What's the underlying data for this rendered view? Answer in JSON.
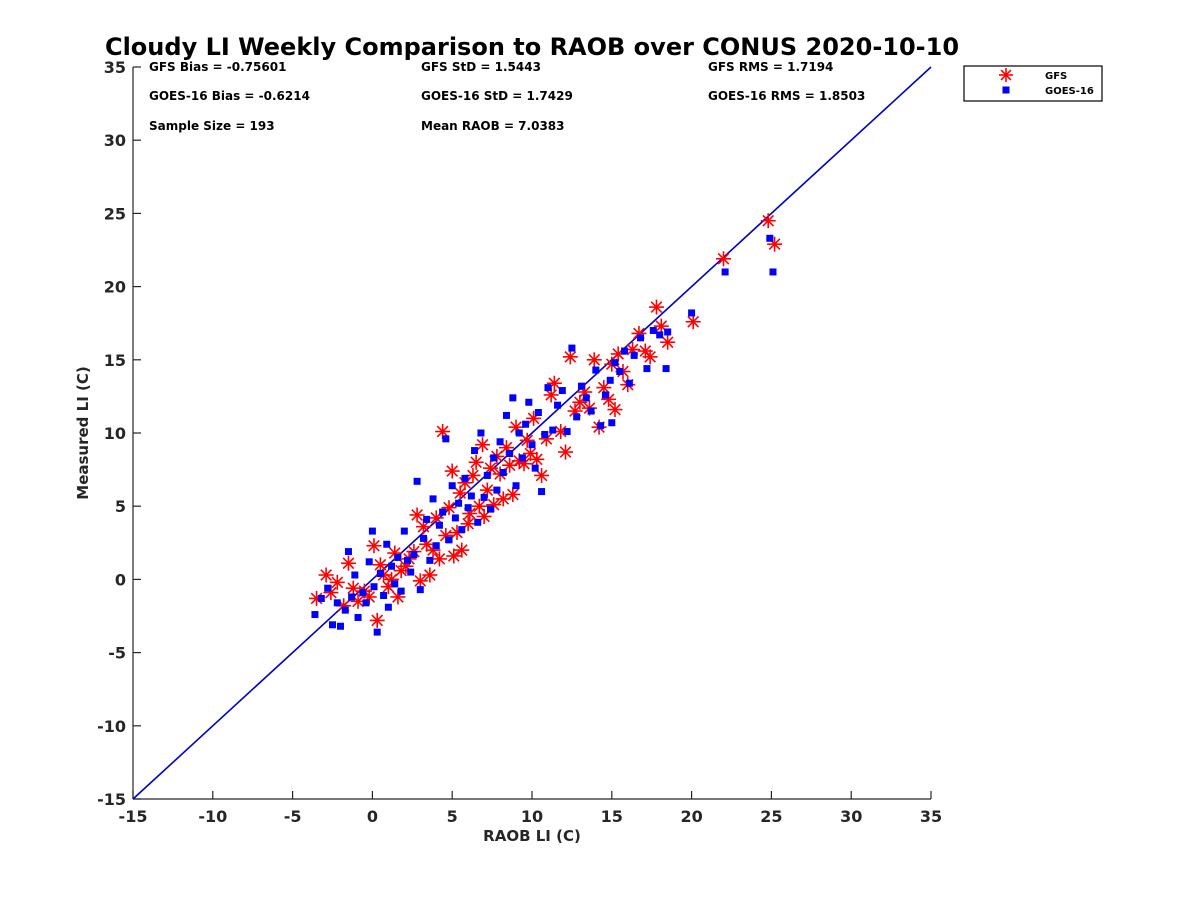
{
  "chart_data": {
    "type": "scatter",
    "title": "Cloudy LI Weekly Comparison to RAOB over CONUS 2020-10-10",
    "xlabel": "RAOB LI (C)",
    "ylabel": "Measured LI (C)",
    "xlim": [
      -15,
      35
    ],
    "ylim": [
      -15,
      35
    ],
    "xticks": [
      -15,
      -10,
      -5,
      0,
      5,
      10,
      15,
      20,
      25,
      30,
      35
    ],
    "yticks": [
      -15,
      -10,
      -5,
      0,
      5,
      10,
      15,
      20,
      25,
      30,
      35
    ],
    "grid": false,
    "legend_position": "outside top-right",
    "reference_line": {
      "x": [
        -15,
        35
      ],
      "y": [
        -15,
        35
      ],
      "color": "#0000cc"
    },
    "stats": {
      "gfs_bias": "GFS Bias = -0.75601",
      "gfs_std": "GFS StD = 1.5443",
      "gfs_rms": "GFS RMS = 1.7194",
      "goes_bias": "GOES-16 Bias = -0.6214",
      "goes_std": "GOES-16 StD = 1.7429",
      "goes_rms": "GOES-16 RMS = 1.8503",
      "sample_size": "Sample Size = 193",
      "mean_raob": "Mean RAOB = 7.0383"
    },
    "series": [
      {
        "name": "GFS",
        "marker": "asterisk",
        "color": "#ff0000",
        "points": [
          [
            -3.5,
            -1.3
          ],
          [
            -2.9,
            0.3
          ],
          [
            -2.6,
            -0.9
          ],
          [
            -2.2,
            -0.2
          ],
          [
            -1.8,
            -1.8
          ],
          [
            -1.5,
            1.1
          ],
          [
            -1.2,
            -0.6
          ],
          [
            -0.9,
            -1.5
          ],
          [
            -0.5,
            -0.8
          ],
          [
            -0.2,
            -1.2
          ],
          [
            0.1,
            2.3
          ],
          [
            0.3,
            -2.8
          ],
          [
            0.5,
            1.0
          ],
          [
            0.7,
            0.3
          ],
          [
            1.0,
            -0.5
          ],
          [
            1.2,
            0.0
          ],
          [
            1.4,
            1.8
          ],
          [
            1.6,
            -1.2
          ],
          [
            1.8,
            0.6
          ],
          [
            2.1,
            0.9
          ],
          [
            2.3,
            1.4
          ],
          [
            2.6,
            1.9
          ],
          [
            2.8,
            4.4
          ],
          [
            3.0,
            -0.1
          ],
          [
            3.2,
            3.6
          ],
          [
            3.4,
            2.4
          ],
          [
            3.6,
            0.3
          ],
          [
            3.8,
            2.0
          ],
          [
            4.0,
            4.2
          ],
          [
            4.2,
            1.4
          ],
          [
            4.4,
            10.1
          ],
          [
            4.6,
            3.0
          ],
          [
            4.8,
            4.9
          ],
          [
            5.0,
            7.4
          ],
          [
            5.1,
            1.6
          ],
          [
            5.3,
            3.2
          ],
          [
            5.5,
            5.9
          ],
          [
            5.6,
            2.0
          ],
          [
            5.8,
            6.6
          ],
          [
            6.0,
            3.8
          ],
          [
            6.1,
            4.5
          ],
          [
            6.3,
            7.1
          ],
          [
            6.5,
            8.0
          ],
          [
            6.7,
            5.0
          ],
          [
            6.9,
            9.2
          ],
          [
            7.0,
            4.3
          ],
          [
            7.2,
            6.1
          ],
          [
            7.4,
            7.6
          ],
          [
            7.6,
            5.1
          ],
          [
            7.8,
            8.4
          ],
          [
            8.0,
            7.2
          ],
          [
            8.2,
            5.5
          ],
          [
            8.4,
            9.0
          ],
          [
            8.6,
            7.8
          ],
          [
            8.8,
            5.8
          ],
          [
            9.0,
            10.4
          ],
          [
            9.2,
            8.1
          ],
          [
            9.5,
            7.9
          ],
          [
            9.7,
            9.5
          ],
          [
            9.9,
            8.6
          ],
          [
            10.1,
            11.0
          ],
          [
            10.3,
            8.2
          ],
          [
            10.6,
            7.1
          ],
          [
            10.9,
            9.6
          ],
          [
            11.2,
            12.6
          ],
          [
            11.4,
            13.4
          ],
          [
            11.8,
            10.1
          ],
          [
            12.1,
            8.7
          ],
          [
            12.4,
            15.2
          ],
          [
            12.7,
            11.5
          ],
          [
            13.0,
            12.1
          ],
          [
            13.3,
            12.8
          ],
          [
            13.6,
            11.7
          ],
          [
            13.9,
            15.0
          ],
          [
            14.2,
            10.4
          ],
          [
            14.5,
            13.1
          ],
          [
            14.8,
            12.3
          ],
          [
            15.0,
            14.7
          ],
          [
            15.2,
            11.6
          ],
          [
            15.4,
            15.4
          ],
          [
            15.7,
            14.2
          ],
          [
            16.0,
            13.3
          ],
          [
            16.3,
            15.7
          ],
          [
            16.7,
            16.8
          ],
          [
            17.1,
            15.6
          ],
          [
            17.4,
            15.2
          ],
          [
            17.8,
            18.6
          ],
          [
            18.1,
            17.3
          ],
          [
            18.5,
            16.2
          ],
          [
            20.1,
            17.6
          ],
          [
            22.0,
            21.9
          ],
          [
            24.8,
            24.5
          ],
          [
            25.2,
            22.9
          ]
        ]
      },
      {
        "name": "GOES-16",
        "marker": "square",
        "color": "#0000ff",
        "points": [
          [
            -3.6,
            -2.4
          ],
          [
            -3.2,
            -1.3
          ],
          [
            -2.8,
            -0.6
          ],
          [
            -2.5,
            -3.1
          ],
          [
            -2.2,
            -1.6
          ],
          [
            -2.0,
            -3.2
          ],
          [
            -1.7,
            -2.1
          ],
          [
            -1.5,
            1.9
          ],
          [
            -1.3,
            -1.2
          ],
          [
            -1.1,
            0.3
          ],
          [
            -0.9,
            -2.6
          ],
          [
            -0.6,
            -0.9
          ],
          [
            -0.4,
            -1.6
          ],
          [
            -0.2,
            1.2
          ],
          [
            0.0,
            3.3
          ],
          [
            0.1,
            -0.5
          ],
          [
            0.3,
            -3.6
          ],
          [
            0.5,
            0.4
          ],
          [
            0.7,
            -1.1
          ],
          [
            0.9,
            2.4
          ],
          [
            1.0,
            -1.9
          ],
          [
            1.2,
            0.9
          ],
          [
            1.4,
            -0.3
          ],
          [
            1.6,
            1.5
          ],
          [
            1.8,
            -0.8
          ],
          [
            2.0,
            3.3
          ],
          [
            2.2,
            1.3
          ],
          [
            2.4,
            0.5
          ],
          [
            2.6,
            1.7
          ],
          [
            2.8,
            6.7
          ],
          [
            3.0,
            -0.7
          ],
          [
            3.2,
            2.8
          ],
          [
            3.4,
            4.1
          ],
          [
            3.6,
            1.3
          ],
          [
            3.8,
            5.5
          ],
          [
            4.0,
            2.3
          ],
          [
            4.2,
            3.7
          ],
          [
            4.4,
            4.6
          ],
          [
            4.6,
            9.6
          ],
          [
            4.8,
            2.7
          ],
          [
            5.0,
            6.4
          ],
          [
            5.2,
            4.2
          ],
          [
            5.4,
            5.2
          ],
          [
            5.6,
            3.4
          ],
          [
            5.8,
            6.9
          ],
          [
            6.0,
            4.9
          ],
          [
            6.2,
            5.7
          ],
          [
            6.4,
            8.8
          ],
          [
            6.6,
            3.9
          ],
          [
            6.8,
            10.0
          ],
          [
            7.0,
            5.6
          ],
          [
            7.2,
            7.1
          ],
          [
            7.4,
            4.8
          ],
          [
            7.6,
            8.3
          ],
          [
            7.8,
            6.1
          ],
          [
            8.0,
            9.4
          ],
          [
            8.2,
            7.3
          ],
          [
            8.4,
            11.2
          ],
          [
            8.6,
            8.6
          ],
          [
            8.8,
            12.4
          ],
          [
            9.0,
            6.4
          ],
          [
            9.2,
            10.0
          ],
          [
            9.4,
            8.3
          ],
          [
            9.6,
            10.6
          ],
          [
            9.8,
            12.1
          ],
          [
            10.0,
            9.2
          ],
          [
            10.2,
            7.6
          ],
          [
            10.4,
            11.4
          ],
          [
            10.6,
            6.0
          ],
          [
            10.8,
            9.9
          ],
          [
            11.0,
            13.1
          ],
          [
            11.3,
            10.2
          ],
          [
            11.6,
            11.9
          ],
          [
            11.9,
            12.9
          ],
          [
            12.2,
            10.1
          ],
          [
            12.5,
            15.8
          ],
          [
            12.8,
            11.1
          ],
          [
            13.1,
            13.2
          ],
          [
            13.4,
            12.4
          ],
          [
            13.7,
            11.5
          ],
          [
            14.0,
            14.3
          ],
          [
            14.3,
            10.5
          ],
          [
            14.6,
            12.6
          ],
          [
            14.9,
            13.6
          ],
          [
            15.0,
            10.7
          ],
          [
            15.2,
            14.8
          ],
          [
            15.5,
            14.2
          ],
          [
            15.8,
            15.6
          ],
          [
            16.1,
            13.4
          ],
          [
            16.4,
            15.3
          ],
          [
            16.8,
            16.5
          ],
          [
            17.2,
            14.4
          ],
          [
            17.6,
            17.0
          ],
          [
            18.0,
            16.7
          ],
          [
            18.4,
            14.4
          ],
          [
            18.5,
            16.9
          ],
          [
            20.0,
            18.2
          ],
          [
            22.1,
            21.0
          ],
          [
            24.9,
            23.3
          ],
          [
            25.1,
            21.0
          ]
        ]
      }
    ]
  }
}
